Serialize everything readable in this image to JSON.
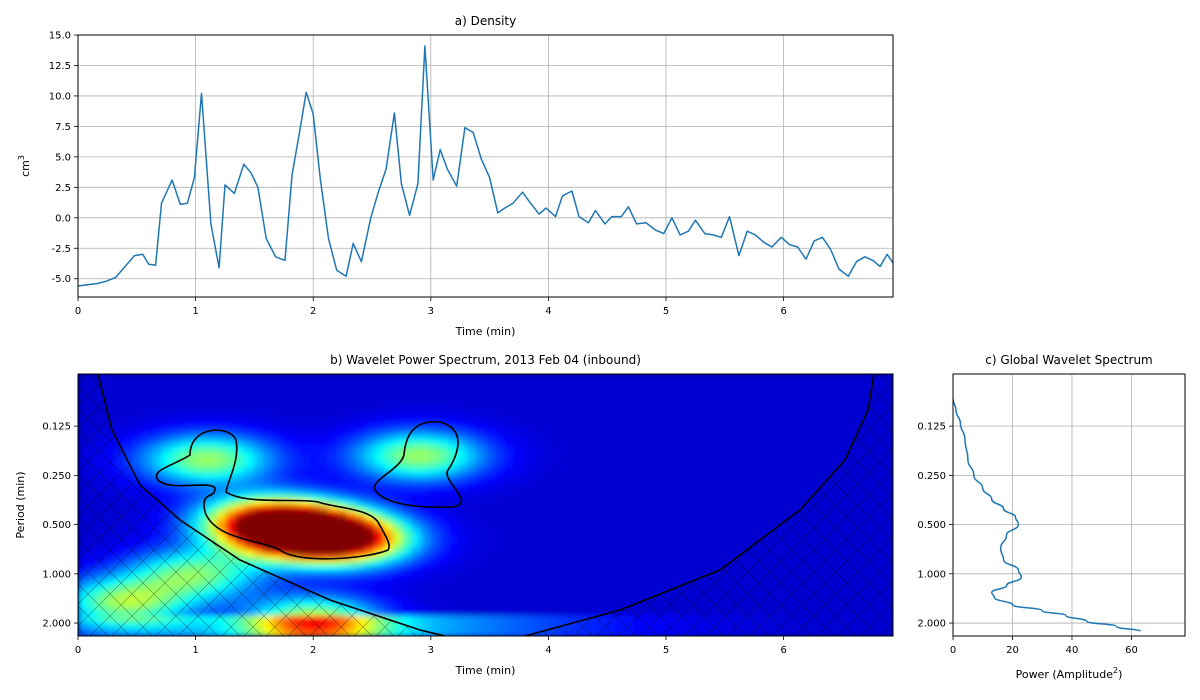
{
  "chart_data": [
    {
      "type": "line",
      "title": "a) Density",
      "xlabel": "Time (min)",
      "ylabel": "cm",
      "ylabel_sup": "3",
      "xlim": [
        0,
        6.93
      ],
      "ylim": [
        -6.5,
        15
      ],
      "xticks": [
        "0",
        "1",
        "2",
        "3",
        "4",
        "5",
        "6"
      ],
      "yticks": [
        "-5.0",
        "-2.5",
        "0.0",
        "2.5",
        "5.0",
        "7.5",
        "10.0",
        "12.5",
        "15.0"
      ],
      "grid": true,
      "color": "#1f77b4",
      "x": [
        0,
        0.08,
        0.16,
        0.24,
        0.32,
        0.4,
        0.48,
        0.55,
        0.6,
        0.66,
        0.71,
        0.8,
        0.87,
        0.93,
        0.99,
        1.05,
        1.13,
        1.2,
        1.25,
        1.33,
        1.41,
        1.47,
        1.53,
        1.6,
        1.68,
        1.76,
        1.82,
        1.88,
        1.94,
        2.0,
        2.06,
        2.13,
        2.2,
        2.28,
        2.34,
        2.41,
        2.49,
        2.55,
        2.62,
        2.69,
        2.75,
        2.82,
        2.89,
        2.95,
        3.02,
        3.08,
        3.14,
        3.22,
        3.29,
        3.36,
        3.43,
        3.5,
        3.57,
        3.63,
        3.7,
        3.78,
        3.84,
        3.92,
        3.98,
        4.06,
        4.12,
        4.2,
        4.26,
        4.34,
        4.4,
        4.48,
        4.54,
        4.62,
        4.68,
        4.75,
        4.83,
        4.91,
        4.98,
        5.05,
        5.12,
        5.19,
        5.25,
        5.33,
        5.4,
        5.47,
        5.54,
        5.62,
        5.69,
        5.76,
        5.83,
        5.9,
        5.98,
        6.05,
        6.12,
        6.19,
        6.26,
        6.33,
        6.4,
        6.47,
        6.55,
        6.62,
        6.69,
        6.76,
        6.82,
        6.88,
        6.93
      ],
      "y": [
        -5.6,
        -5.5,
        -5.4,
        -5.2,
        -4.9,
        -4.0,
        -3.1,
        -3.0,
        -3.8,
        -3.9,
        1.2,
        3.1,
        1.1,
        1.2,
        3.3,
        10.2,
        -0.5,
        -4.1,
        2.7,
        2.0,
        4.4,
        3.7,
        2.5,
        -1.7,
        -3.2,
        -3.5,
        3.5,
        6.8,
        10.3,
        8.5,
        3.2,
        -1.7,
        -4.3,
        -4.8,
        -2.1,
        -3.6,
        0.0,
        2.0,
        4.0,
        8.6,
        2.8,
        0.2,
        2.8,
        14.1,
        3.1,
        5.6,
        4.0,
        2.6,
        7.4,
        7.0,
        4.8,
        3.3,
        0.4,
        0.8,
        1.2,
        2.1,
        1.3,
        0.3,
        0.8,
        0.1,
        1.8,
        2.2,
        0.1,
        -0.4,
        0.6,
        -0.5,
        0.1,
        0.1,
        0.9,
        -0.5,
        -0.4,
        -1.0,
        -1.3,
        0.0,
        -1.4,
        -1.1,
        -0.2,
        -1.3,
        -1.4,
        -1.6,
        0.1,
        -3.1,
        -1.1,
        -1.4,
        -2.0,
        -2.4,
        -1.6,
        -2.2,
        -2.4,
        -3.4,
        -1.9,
        -1.6,
        -2.6,
        -4.2,
        -4.8,
        -3.6,
        -3.2,
        -3.5,
        -4.0,
        -3.0,
        -3.7
      ]
    },
    {
      "type": "heatmap",
      "title": "b) Wavelet Power Spectrum, 2013 Feb 04 (inbound)",
      "xlabel": "Time (min)",
      "ylabel": "Period (min)",
      "xlim": [
        0,
        6.93
      ],
      "period_range": [
        0.06,
        2.4
      ],
      "y_scale": "log2, inverted (small periods on top)",
      "xticks": [
        "0",
        "1",
        "2",
        "3",
        "4",
        "5",
        "6"
      ],
      "yticks": [
        "0.125",
        "0.250",
        "0.500",
        "1.000",
        "2.000"
      ],
      "colormap": "jet",
      "cone_of_influence": "hatched black region",
      "significance_contours": 3,
      "peak": {
        "time": 1.9,
        "period": 0.56
      },
      "features": [
        {
          "time": 1.9,
          "period": 0.56,
          "level": 1.0
        },
        {
          "time": 1.6,
          "period": 0.48,
          "level": 0.7
        },
        {
          "time": 2.3,
          "period": 0.62,
          "level": 0.7
        },
        {
          "time": 1.1,
          "period": 0.2,
          "level": 0.45
        },
        {
          "time": 2.9,
          "period": 0.19,
          "level": 0.45
        },
        {
          "time": 1.0,
          "period": 1.0,
          "level": 0.4
        },
        {
          "time": 2.0,
          "period": 2.0,
          "level": 0.55
        },
        {
          "time": 0.4,
          "period": 1.5,
          "level": 0.45
        }
      ]
    },
    {
      "type": "line",
      "title": "c) Global Wavelet Spectrum",
      "xlabel": "Power (Amplitude",
      "xlabel_sup": "2",
      "xlabel_tail": ")",
      "xlim": [
        0,
        78
      ],
      "xticks": [
        "0",
        "20",
        "40",
        "60"
      ],
      "yticks": [
        "0.125",
        "0.250",
        "0.500",
        "1.000",
        "2.000"
      ],
      "grid": true,
      "color": "#1f77b4",
      "power": [
        0,
        1.0,
        2.5,
        4,
        5,
        7,
        10,
        13,
        17,
        21,
        22,
        18,
        16,
        17,
        22,
        23,
        18,
        13,
        14,
        20,
        30,
        38,
        45,
        55,
        63
      ],
      "period": [
        0.085,
        0.1,
        0.12,
        0.15,
        0.2,
        0.25,
        0.3,
        0.35,
        0.4,
        0.45,
        0.5,
        0.58,
        0.7,
        0.82,
        0.95,
        1.05,
        1.18,
        1.3,
        1.4,
        1.55,
        1.68,
        1.8,
        1.95,
        2.1,
        2.25
      ]
    }
  ]
}
